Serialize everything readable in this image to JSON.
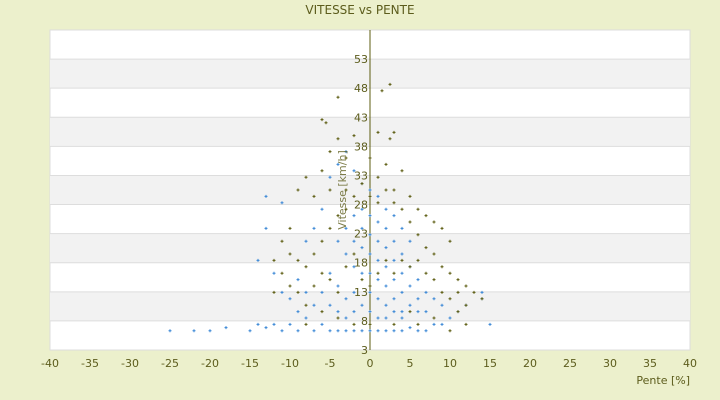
{
  "chart_data": {
    "type": "scatter",
    "title": "VITESSE vs PENTE",
    "xlabel": "Pente [%]",
    "ylabel": "Vitesse [km/h]",
    "xlim": [
      -40,
      40
    ],
    "ylim": [
      3,
      53
    ],
    "xticks": [
      -40,
      -35,
      -30,
      -25,
      -20,
      -15,
      -10,
      -5,
      0,
      5,
      10,
      15,
      20,
      25,
      30,
      35,
      40
    ],
    "yticks": [
      3,
      8,
      13,
      18,
      23,
      28,
      33,
      38,
      43,
      48,
      53
    ],
    "grid": "horizontal alternating bands",
    "colors": {
      "blue": "#3a87d6",
      "olive": "#5c5c10",
      "band": "#f2f2f2",
      "axis": "#5c5c10"
    },
    "series": [
      {
        "color": "#3a87d6",
        "points": [
          [
            -25,
            6
          ],
          [
            -22,
            6
          ],
          [
            -20,
            6
          ],
          [
            -18,
            6.5
          ],
          [
            -15,
            6
          ],
          [
            -14,
            7
          ],
          [
            -13,
            6.5
          ],
          [
            -12,
            7
          ],
          [
            -11,
            6
          ],
          [
            -10,
            7
          ],
          [
            -9,
            6
          ],
          [
            -8,
            8
          ],
          [
            -7,
            6
          ],
          [
            -6,
            7
          ],
          [
            -5,
            6
          ],
          [
            -4,
            6
          ],
          [
            -3,
            6
          ],
          [
            -2,
            6
          ],
          [
            -1,
            6
          ],
          [
            0,
            6
          ],
          [
            1,
            6
          ],
          [
            2,
            6
          ],
          [
            3,
            6
          ],
          [
            4,
            6
          ],
          [
            5,
            6.5
          ],
          [
            6,
            6
          ],
          [
            7,
            6
          ],
          [
            8,
            7
          ],
          [
            9,
            7
          ],
          [
            10,
            8
          ],
          [
            11,
            9
          ],
          [
            12,
            10
          ],
          [
            14,
            11
          ],
          [
            15,
            7
          ],
          [
            14,
            12
          ],
          [
            -13,
            27
          ],
          [
            -13,
            22
          ],
          [
            -11,
            26
          ],
          [
            -14,
            17
          ],
          [
            -12,
            15
          ],
          [
            -10,
            18
          ],
          [
            -9,
            14
          ],
          [
            -8,
            20
          ],
          [
            -7,
            22
          ],
          [
            -6,
            25
          ],
          [
            -5,
            30
          ],
          [
            -4,
            32
          ],
          [
            -3,
            34
          ],
          [
            -2,
            31
          ],
          [
            -1,
            29
          ],
          [
            0,
            28
          ],
          [
            1,
            27
          ],
          [
            2,
            25
          ],
          [
            3,
            24
          ],
          [
            4,
            22
          ],
          [
            5,
            20
          ],
          [
            -4,
            20
          ],
          [
            -3,
            22
          ],
          [
            -3,
            18
          ],
          [
            -2,
            24
          ],
          [
            -2,
            20
          ],
          [
            -2,
            16
          ],
          [
            -1,
            25
          ],
          [
            -1,
            22
          ],
          [
            -1,
            19
          ],
          [
            -1,
            15
          ],
          [
            0,
            24
          ],
          [
            0,
            21
          ],
          [
            0,
            18
          ],
          [
            0,
            15
          ],
          [
            0,
            12
          ],
          [
            1,
            23
          ],
          [
            1,
            20
          ],
          [
            1,
            17
          ],
          [
            1,
            14
          ],
          [
            1,
            11
          ],
          [
            2,
            22
          ],
          [
            2,
            19
          ],
          [
            2,
            16
          ],
          [
            2,
            13
          ],
          [
            2,
            10
          ],
          [
            3,
            20
          ],
          [
            3,
            17
          ],
          [
            3,
            14
          ],
          [
            3,
            11
          ],
          [
            4,
            18
          ],
          [
            4,
            15
          ],
          [
            4,
            12
          ],
          [
            4,
            9
          ],
          [
            5,
            16
          ],
          [
            5,
            13
          ],
          [
            5,
            10
          ],
          [
            6,
            14
          ],
          [
            6,
            11
          ],
          [
            7,
            12
          ],
          [
            7,
            9
          ],
          [
            8,
            11
          ],
          [
            9,
            10
          ],
          [
            -6,
            12
          ],
          [
            -5,
            15
          ],
          [
            -5,
            10
          ],
          [
            -4,
            13
          ],
          [
            -4,
            9
          ],
          [
            -3,
            11
          ],
          [
            -3,
            8
          ],
          [
            -2,
            12
          ],
          [
            -2,
            9
          ],
          [
            -1,
            10
          ],
          [
            0,
            9
          ],
          [
            1,
            8
          ],
          [
            2,
            8
          ],
          [
            3,
            9
          ],
          [
            4,
            8
          ],
          [
            6,
            9
          ],
          [
            -7,
            10
          ],
          [
            -8,
            12
          ],
          [
            -9,
            9
          ],
          [
            -10,
            11
          ],
          [
            -11,
            12
          ]
        ]
      },
      {
        "color": "#5c5c10",
        "points": [
          [
            2.5,
            44.5
          ],
          [
            1.5,
            43.5
          ],
          [
            -4,
            42.5
          ],
          [
            -6,
            39
          ],
          [
            -5.5,
            38.5
          ],
          [
            3,
            37
          ],
          [
            2.5,
            36
          ],
          [
            1,
            37
          ],
          [
            -2,
            36.5
          ],
          [
            -4,
            36
          ],
          [
            -5,
            34
          ],
          [
            -3,
            33
          ],
          [
            0,
            33
          ],
          [
            2,
            32
          ],
          [
            4,
            31
          ],
          [
            -6,
            31
          ],
          [
            -8,
            30
          ],
          [
            -9,
            28
          ],
          [
            -7,
            27
          ],
          [
            -5,
            28
          ],
          [
            -3,
            28
          ],
          [
            -1,
            29
          ],
          [
            1,
            30
          ],
          [
            3,
            28
          ],
          [
            5,
            27
          ],
          [
            6,
            25
          ],
          [
            7,
            24
          ],
          [
            8,
            23
          ],
          [
            9,
            22
          ],
          [
            10,
            20
          ],
          [
            -10,
            22
          ],
          [
            -11,
            20
          ],
          [
            -10,
            18
          ],
          [
            -9,
            17
          ],
          [
            -8,
            16
          ],
          [
            -7,
            18
          ],
          [
            -6,
            20
          ],
          [
            -5,
            22
          ],
          [
            -4,
            24
          ],
          [
            -3,
            25
          ],
          [
            -2,
            27
          ],
          [
            0,
            27
          ],
          [
            1,
            26
          ],
          [
            2,
            28
          ],
          [
            3,
            26
          ],
          [
            4,
            25
          ],
          [
            5,
            23
          ],
          [
            6,
            21
          ],
          [
            7,
            19
          ],
          [
            8,
            18
          ],
          [
            9,
            16
          ],
          [
            10,
            15
          ],
          [
            11,
            14
          ],
          [
            12,
            13
          ],
          [
            13,
            12
          ],
          [
            14,
            11
          ],
          [
            11,
            12
          ],
          [
            12,
            10
          ],
          [
            -9,
            12
          ],
          [
            -8,
            10
          ],
          [
            -7,
            13
          ],
          [
            -6,
            15
          ],
          [
            -5,
            14
          ],
          [
            -4,
            12
          ],
          [
            -3,
            16
          ],
          [
            -2,
            18
          ],
          [
            -1,
            14
          ],
          [
            0,
            13
          ],
          [
            1,
            15
          ],
          [
            2,
            17
          ],
          [
            3,
            15
          ],
          [
            4,
            17
          ],
          [
            5,
            16
          ],
          [
            6,
            17
          ],
          [
            7,
            15
          ],
          [
            8,
            14
          ],
          [
            9,
            12
          ],
          [
            10,
            11
          ],
          [
            11,
            9
          ],
          [
            12,
            7
          ],
          [
            10,
            6
          ],
          [
            8,
            8
          ],
          [
            6,
            7
          ],
          [
            5,
            9
          ],
          [
            3,
            7
          ],
          [
            0,
            7
          ],
          [
            -2,
            7
          ],
          [
            -4,
            8
          ],
          [
            -6,
            9
          ],
          [
            -8,
            7
          ],
          [
            -10,
            13
          ],
          [
            -11,
            15
          ],
          [
            -12,
            17
          ],
          [
            -12,
            12
          ]
        ]
      }
    ]
  }
}
